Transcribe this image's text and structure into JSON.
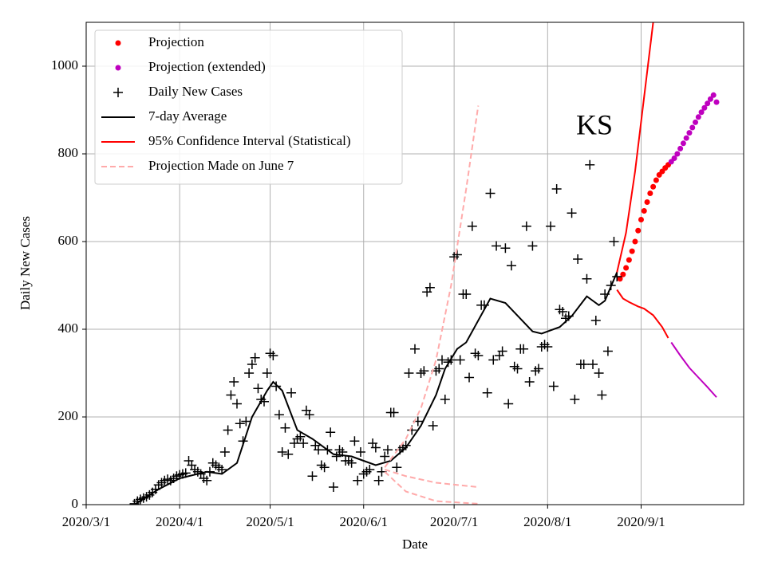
{
  "chart_data": {
    "type": "line",
    "annotation": "KS",
    "xlabel": "Date",
    "ylabel": "Daily New Cases",
    "xlim": [
      "2020/3/1",
      "2020/10/5"
    ],
    "xticks": [
      "2020/3/1",
      "2020/4/1",
      "2020/5/1",
      "2020/6/1",
      "2020/7/1",
      "2020/8/1",
      "2020/9/1"
    ],
    "ylim": [
      0,
      1100
    ],
    "yticks": [
      0,
      200,
      400,
      600,
      800,
      1000
    ],
    "grid": true,
    "legend": "upper left",
    "series": [
      {
        "name": "Projection",
        "color": "#ff0000",
        "marker": "o",
        "linestyle": "none",
        "x": [
          "2020/8/25",
          "2020/8/26",
          "2020/8/27",
          "2020/8/28",
          "2020/8/29",
          "2020/8/30",
          "2020/8/31",
          "2020/9/1",
          "2020/9/2",
          "2020/9/3",
          "2020/9/4",
          "2020/9/5",
          "2020/9/6",
          "2020/9/7",
          "2020/9/8",
          "2020/9/9",
          "2020/9/10"
        ],
        "values": [
          515,
          525,
          540,
          558,
          578,
          600,
          625,
          650,
          670,
          690,
          710,
          725,
          740,
          752,
          760,
          768,
          775
        ]
      },
      {
        "name": "Projection (extended)",
        "color": "#bf00bf",
        "marker": "o",
        "linestyle": "none",
        "x": [
          "2020/9/11",
          "2020/9/12",
          "2020/9/13",
          "2020/9/14",
          "2020/9/15",
          "2020/9/16",
          "2020/9/17",
          "2020/9/18",
          "2020/9/19",
          "2020/9/20",
          "2020/9/21",
          "2020/9/22",
          "2020/9/23",
          "2020/9/24",
          "2020/9/25",
          "2020/9/26"
        ],
        "values": [
          782,
          790,
          800,
          812,
          824,
          836,
          848,
          860,
          872,
          884,
          895,
          905,
          915,
          925,
          934,
          918
        ]
      },
      {
        "name": "Daily New Cases",
        "color": "#000000",
        "marker": "+",
        "linestyle": "none",
        "x": [
          "2020/3/17",
          "2020/3/18",
          "2020/3/19",
          "2020/3/20",
          "2020/3/21",
          "2020/3/22",
          "2020/3/23",
          "2020/3/24",
          "2020/3/25",
          "2020/3/26",
          "2020/3/27",
          "2020/3/28",
          "2020/3/29",
          "2020/3/30",
          "2020/3/31",
          "2020/4/1",
          "2020/4/2",
          "2020/4/3",
          "2020/4/4",
          "2020/4/5",
          "2020/4/6",
          "2020/4/7",
          "2020/4/8",
          "2020/4/9",
          "2020/4/10",
          "2020/4/11",
          "2020/4/12",
          "2020/4/13",
          "2020/4/14",
          "2020/4/15",
          "2020/4/16",
          "2020/4/17",
          "2020/4/18",
          "2020/4/19",
          "2020/4/20",
          "2020/4/21",
          "2020/4/22",
          "2020/4/23",
          "2020/4/24",
          "2020/4/25",
          "2020/4/26",
          "2020/4/27",
          "2020/4/28",
          "2020/4/29",
          "2020/4/30",
          "2020/5/1",
          "2020/5/2",
          "2020/5/3",
          "2020/5/4",
          "2020/5/5",
          "2020/5/6",
          "2020/5/7",
          "2020/5/8",
          "2020/5/9",
          "2020/5/10",
          "2020/5/11",
          "2020/5/12",
          "2020/5/13",
          "2020/5/14",
          "2020/5/15",
          "2020/5/16",
          "2020/5/17",
          "2020/5/18",
          "2020/5/19",
          "2020/5/20",
          "2020/5/21",
          "2020/5/22",
          "2020/5/23",
          "2020/5/24",
          "2020/5/25",
          "2020/5/26",
          "2020/5/27",
          "2020/5/28",
          "2020/5/29",
          "2020/5/30",
          "2020/5/31",
          "2020/6/1",
          "2020/6/2",
          "2020/6/3",
          "2020/6/4",
          "2020/6/5",
          "2020/6/6",
          "2020/6/7",
          "2020/6/8",
          "2020/6/9",
          "2020/6/10",
          "2020/6/11",
          "2020/6/12",
          "2020/6/13",
          "2020/6/14",
          "2020/6/15",
          "2020/6/16",
          "2020/6/17",
          "2020/6/18",
          "2020/6/19",
          "2020/6/20",
          "2020/6/21",
          "2020/6/22",
          "2020/6/23",
          "2020/6/24",
          "2020/6/25",
          "2020/6/26",
          "2020/6/27",
          "2020/6/28",
          "2020/6/29",
          "2020/6/30",
          "2020/7/1",
          "2020/7/2",
          "2020/7/3",
          "2020/7/4",
          "2020/7/5",
          "2020/7/6",
          "2020/7/7",
          "2020/7/8",
          "2020/7/9",
          "2020/7/10",
          "2020/7/11",
          "2020/7/12",
          "2020/7/13",
          "2020/7/14",
          "2020/7/15",
          "2020/7/16",
          "2020/7/17",
          "2020/7/18",
          "2020/7/19",
          "2020/7/20",
          "2020/7/21",
          "2020/7/22",
          "2020/7/23",
          "2020/7/24",
          "2020/7/25",
          "2020/7/26",
          "2020/7/27",
          "2020/7/28",
          "2020/7/29",
          "2020/7/30",
          "2020/7/31",
          "2020/8/1",
          "2020/8/2",
          "2020/8/3",
          "2020/8/4",
          "2020/8/5",
          "2020/8/6",
          "2020/8/7",
          "2020/8/8",
          "2020/8/9",
          "2020/8/10",
          "2020/8/11",
          "2020/8/12",
          "2020/8/13",
          "2020/8/14",
          "2020/8/15",
          "2020/8/16",
          "2020/8/17",
          "2020/8/18",
          "2020/8/19",
          "2020/8/20",
          "2020/8/21",
          "2020/8/22",
          "2020/8/23",
          "2020/8/24"
        ],
        "values": [
          2,
          8,
          12,
          15,
          18,
          22,
          28,
          35,
          45,
          50,
          55,
          58,
          55,
          60,
          65,
          68,
          70,
          72,
          100,
          90,
          80,
          75,
          70,
          60,
          55,
          75,
          95,
          90,
          85,
          80,
          120,
          170,
          250,
          280,
          230,
          185,
          145,
          190,
          300,
          320,
          335,
          265,
          240,
          235,
          300,
          345,
          340,
          270,
          205,
          120,
          175,
          115,
          255,
          140,
          150,
          155,
          140,
          215,
          205,
          65,
          135,
          125,
          90,
          85,
          125,
          165,
          40,
          110,
          125,
          120,
          100,
          100,
          95,
          145,
          55,
          120,
          70,
          75,
          80,
          140,
          130,
          55,
          75,
          110,
          125,
          210,
          210,
          85,
          125,
          130,
          135,
          300,
          170,
          355,
          190,
          300,
          305,
          485,
          495,
          180,
          305,
          310,
          330,
          240,
          325,
          330,
          565,
          570,
          330,
          480,
          480,
          290,
          635,
          345,
          340,
          455,
          455,
          255,
          710,
          330,
          590,
          340,
          350,
          585,
          230,
          545,
          315,
          310,
          355,
          355,
          635,
          280,
          590,
          305,
          310,
          360,
          365,
          360,
          635,
          270,
          720,
          445,
          440,
          425,
          430,
          665,
          240,
          560,
          320,
          320,
          515,
          775,
          320,
          420,
          300,
          250,
          480,
          350,
          500,
          600,
          520
        ]
      },
      {
        "name": "7-day Average",
        "color": "#000000",
        "marker": "none",
        "linestyle": "-",
        "x": [
          "2020/3/17",
          "2020/3/25",
          "2020/4/1",
          "2020/4/10",
          "2020/4/15",
          "2020/4/20",
          "2020/4/25",
          "2020/4/30",
          "2020/5/2",
          "2020/5/5",
          "2020/5/10",
          "2020/5/15",
          "2020/5/22",
          "2020/5/28",
          "2020/6/1",
          "2020/6/5",
          "2020/6/10",
          "2020/6/15",
          "2020/6/20",
          "2020/6/25",
          "2020/6/28",
          "2020/7/2",
          "2020/7/5",
          "2020/7/13",
          "2020/7/18",
          "2020/7/27",
          "2020/7/30",
          "2020/8/5",
          "2020/8/9",
          "2020/8/14",
          "2020/8/18",
          "2020/8/20",
          "2020/8/24"
        ],
        "values": [
          0,
          35,
          60,
          75,
          70,
          95,
          200,
          260,
          280,
          260,
          170,
          150,
          115,
          110,
          100,
          90,
          100,
          130,
          180,
          250,
          310,
          355,
          370,
          470,
          460,
          395,
          390,
          405,
          430,
          475,
          455,
          465,
          530
        ]
      },
      {
        "name": "95% Confidence Interval (Statistical)",
        "color": "#ff0000",
        "marker": "none",
        "linestyle": "-",
        "x": [
          "2020/8/24",
          "2020/8/27",
          "2020/8/30",
          "2020/9/2",
          "2020/9/5",
          "2020/9/6"
        ],
        "values": [
          530,
          620,
          760,
          930,
          1100,
          1170
        ]
      },
      {
        "color": "#ff0000",
        "marker": "none",
        "linestyle": "-",
        "x": [
          "2020/8/24",
          "2020/8/26",
          "2020/8/28",
          "2020/8/31",
          "2020/9/2",
          "2020/9/5",
          "2020/9/8",
          "2020/9/10"
        ],
        "values": [
          490,
          470,
          462,
          452,
          447,
          432,
          405,
          380
        ]
      },
      {
        "color": "#bf00bf",
        "marker": "none",
        "linestyle": "-",
        "x": [
          "2020/9/11",
          "2020/9/14",
          "2020/9/17",
          "2020/9/20",
          "2020/9/23",
          "2020/9/26"
        ],
        "values": [
          370,
          340,
          312,
          290,
          268,
          245
        ]
      },
      {
        "name": "Projection Made on June 7",
        "color": "#ffaaaa",
        "marker": "none",
        "linestyle": "--",
        "x": [
          "2020/6/8",
          "2020/6/15",
          "2020/6/20",
          "2020/6/25",
          "2020/6/30",
          "2020/7/5",
          "2020/7/9"
        ],
        "values": [
          85,
          150,
          220,
          330,
          500,
          720,
          910
        ]
      },
      {
        "color": "#ffaaaa",
        "marker": "none",
        "linestyle": "--",
        "x": [
          "2020/6/8",
          "2020/6/15",
          "2020/6/25",
          "2020/7/9"
        ],
        "values": [
          80,
          65,
          50,
          40
        ]
      },
      {
        "color": "#ffaaaa",
        "marker": "none",
        "linestyle": "--",
        "x": [
          "2020/6/8",
          "2020/6/15",
          "2020/6/25",
          "2020/7/9"
        ],
        "values": [
          75,
          30,
          8,
          2
        ]
      }
    ]
  }
}
